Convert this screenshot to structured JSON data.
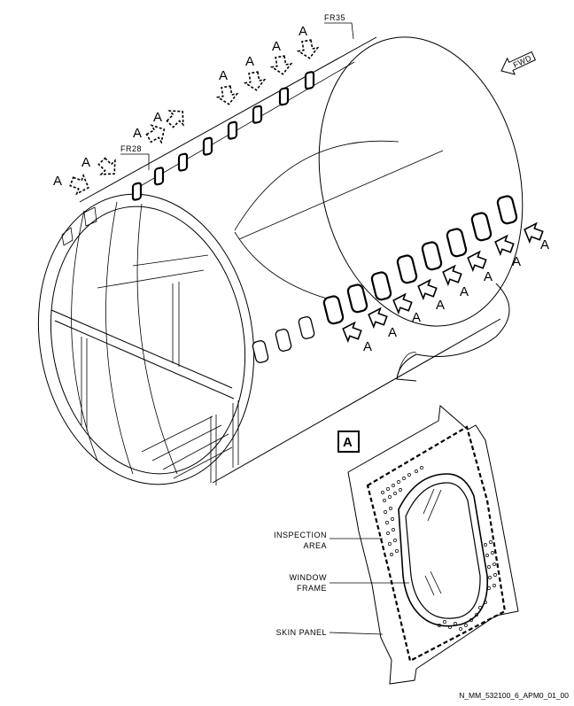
{
  "callouts": {
    "frame_fr35": "FR35",
    "frame_fr28": "FR28",
    "forward": "FWD",
    "view_letter": "A",
    "detail_box": "A",
    "inspection_area": [
      "INSPECTION",
      "AREA"
    ],
    "window_frame": [
      "WINDOW",
      "FRAME"
    ],
    "skin_panel": "SKIN PANEL"
  },
  "drawing_reference": "N_MM_532100_6_APM0_01_00"
}
